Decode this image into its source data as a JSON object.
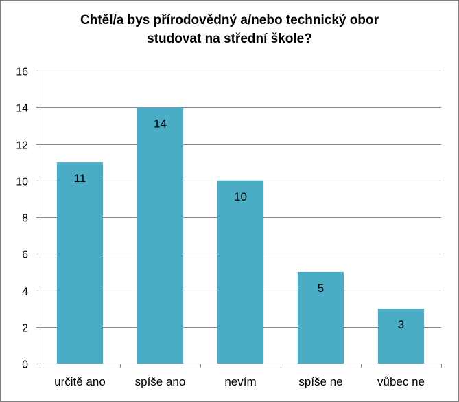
{
  "chart_data": {
    "type": "bar",
    "title_lines": [
      "Chtěl/a bys přírodovědný a/nebo technický obor",
      "studovat na střední škole?"
    ],
    "categories": [
      "určitě ano",
      "spíše ano",
      "nevím",
      "spíše ne",
      "vůbec ne"
    ],
    "values": [
      11,
      14,
      10,
      5,
      3
    ],
    "ylim": [
      0,
      16
    ],
    "yticks": [
      0,
      2,
      4,
      6,
      8,
      10,
      12,
      14,
      16
    ],
    "grid": true,
    "legend": "none",
    "data_labels": "inside-top",
    "bar_color": "#4bacc6",
    "grid_color": "#868686"
  }
}
